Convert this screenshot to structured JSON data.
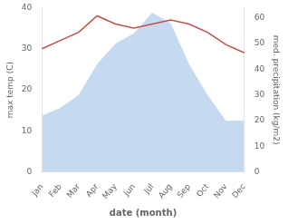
{
  "chart_data": {
    "type": "line",
    "categories": [
      "Jan",
      "Feb",
      "Mar",
      "Apr",
      "May",
      "Jun",
      "Jul",
      "Aug",
      "Sep",
      "Oct",
      "Nov",
      "Dec"
    ],
    "series": [
      {
        "type": "area",
        "color": "#c5d9f1",
        "axis": "y2",
        "values": [
          22,
          25,
          30,
          42,
          50,
          54,
          62,
          58,
          42,
          30,
          20,
          20
        ]
      },
      {
        "type": "line",
        "color": "#c0504d",
        "values": [
          30,
          32,
          34,
          38,
          36,
          35,
          36,
          37,
          36,
          34,
          31,
          29
        ]
      }
    ],
    "xlabel": "date (month)",
    "ylabel": "max temp (C)",
    "y2label": "med. precipitation (kg/m2)",
    "ylim": [
      0,
      40
    ],
    "yticks": [
      0,
      10,
      20,
      30,
      40
    ],
    "y2lim": [
      0,
      64
    ],
    "y2ticks": [
      0,
      10,
      20,
      30,
      40,
      50,
      60
    ],
    "grid": false
  }
}
